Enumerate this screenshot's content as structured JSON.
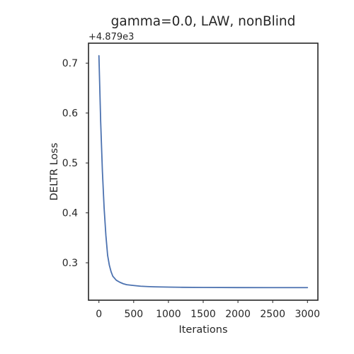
{
  "chart_data": {
    "type": "line",
    "title": "gamma=0.0, LAW, nonBlind",
    "xlabel": "Iterations",
    "ylabel": "DELTR Loss",
    "y_offset_label": "+4.879e3",
    "y_offset": 4879,
    "xlim": [
      -150,
      3150
    ],
    "ylim": [
      0.225,
      0.74
    ],
    "xticks": [
      0,
      500,
      1000,
      1500,
      2000,
      2500,
      3000
    ],
    "xtick_labels": [
      "0",
      "500",
      "1000",
      "1500",
      "2000",
      "2500",
      "3000"
    ],
    "yticks": [
      0.3,
      0.4,
      0.5,
      0.6,
      0.7
    ],
    "ytick_labels": [
      "0.3",
      "0.4",
      "0.5",
      "0.6",
      "0.7"
    ],
    "grid": false,
    "series": [
      {
        "color": "#4c72b0",
        "x": [
          0,
          25,
          50,
          75,
          100,
          125,
          150,
          175,
          200,
          250,
          300,
          350,
          400,
          500,
          600,
          700,
          800,
          1000,
          1200,
          1500,
          2000,
          2500,
          3000
        ],
        "y": [
          0.715,
          0.583,
          0.483,
          0.409,
          0.355,
          0.315,
          0.295,
          0.282,
          0.273,
          0.265,
          0.261,
          0.258,
          0.256,
          0.2545,
          0.253,
          0.2523,
          0.2518,
          0.2512,
          0.2508,
          0.2505,
          0.2503,
          0.2502,
          0.2502
        ]
      }
    ]
  }
}
